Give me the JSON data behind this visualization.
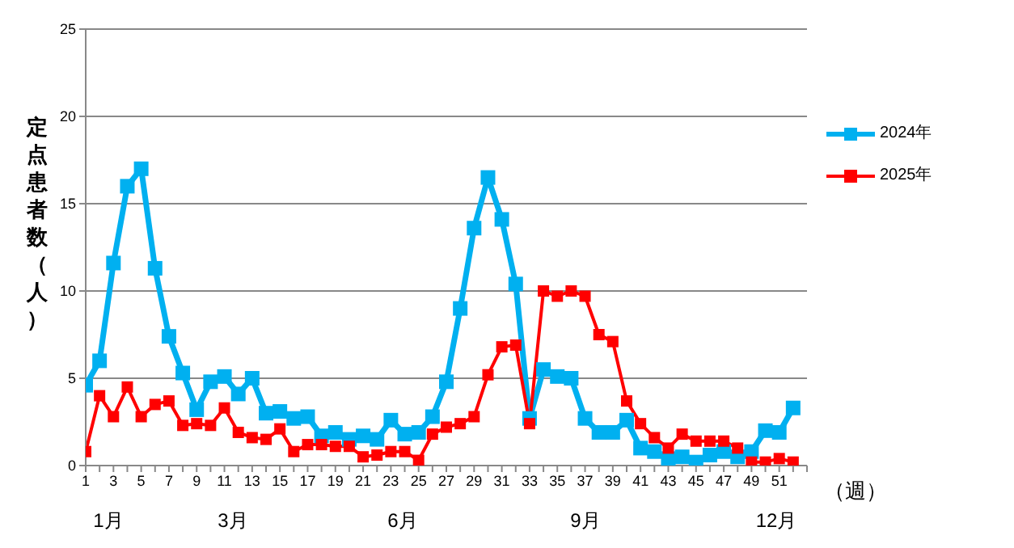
{
  "chart_data": {
    "type": "line",
    "ylabel": "定点患者数（人）",
    "xlabel": "（週）",
    "x": [
      1,
      2,
      3,
      4,
      5,
      6,
      7,
      8,
      9,
      10,
      11,
      12,
      13,
      14,
      15,
      16,
      17,
      18,
      19,
      20,
      21,
      22,
      23,
      24,
      25,
      26,
      27,
      28,
      29,
      30,
      31,
      32,
      33,
      34,
      35,
      36,
      37,
      38,
      39,
      40,
      41,
      42,
      43,
      44,
      45,
      46,
      47,
      48,
      49,
      50,
      51,
      52
    ],
    "series": [
      {
        "name": "2024年",
        "color": "#00b0f0",
        "values": [
          4.6,
          6.0,
          11.6,
          16.0,
          17.0,
          11.3,
          7.4,
          5.3,
          3.2,
          4.8,
          5.1,
          4.1,
          5.0,
          3.0,
          3.1,
          2.7,
          2.8,
          1.7,
          1.9,
          1.5,
          1.7,
          1.5,
          2.6,
          1.8,
          1.9,
          2.8,
          4.8,
          9.0,
          13.6,
          16.5,
          14.1,
          10.4,
          2.7,
          5.5,
          5.1,
          5.0,
          2.7,
          1.9,
          1.9,
          2.6,
          1.0,
          0.8,
          0.4,
          0.5,
          0.2,
          0.6,
          0.8,
          0.5,
          0.8,
          2.0,
          1.9,
          3.3
        ]
      },
      {
        "name": "2025年",
        "color": "#ff0000",
        "values": [
          0.8,
          4.0,
          2.8,
          4.5,
          2.8,
          3.5,
          3.7,
          2.3,
          2.4,
          2.3,
          3.3,
          1.9,
          1.6,
          1.5,
          2.1,
          0.8,
          1.2,
          1.2,
          1.1,
          1.1,
          0.5,
          0.6,
          0.8,
          0.8,
          0.3,
          1.8,
          2.2,
          2.4,
          2.8,
          5.2,
          6.8,
          6.9,
          2.4,
          10.0,
          9.7,
          10.0,
          9.7,
          7.5,
          7.1,
          3.7,
          2.4,
          1.6,
          1.0,
          1.8,
          1.4,
          1.4,
          1.4,
          1.0,
          0.2,
          0.2,
          0.4,
          0.2
        ]
      }
    ],
    "xlim": [
      1,
      53
    ],
    "xticks": [
      1,
      {
        "value": 2,
        "label": null
      },
      3,
      {
        "value": 4,
        "label": null
      },
      5,
      {
        "value": 6,
        "label": null
      },
      7,
      {
        "value": 8,
        "label": null
      },
      9,
      {
        "value": 10,
        "label": null
      },
      11,
      {
        "value": 12,
        "label": null
      },
      13,
      {
        "value": 14,
        "label": null
      },
      15,
      {
        "value": 16,
        "label": null
      },
      17,
      {
        "value": 18,
        "label": null
      },
      19,
      {
        "value": 20,
        "label": null
      },
      21,
      {
        "value": 22,
        "label": null
      },
      23,
      {
        "value": 24,
        "label": null
      },
      25,
      {
        "value": 26,
        "label": null
      },
      27,
      {
        "value": 28,
        "label": null
      },
      29,
      {
        "value": 30,
        "label": null
      },
      31,
      {
        "value": 32,
        "label": null
      },
      33,
      {
        "value": 34,
        "label": null
      },
      35,
      {
        "value": 36,
        "label": null
      },
      37,
      {
        "value": 38,
        "label": null
      },
      39,
      {
        "value": 40,
        "label": null
      },
      41,
      {
        "value": 42,
        "label": null
      },
      43,
      {
        "value": 44,
        "label": null
      },
      45,
      {
        "value": 46,
        "label": null
      },
      47,
      {
        "value": 48,
        "label": null
      },
      49,
      {
        "value": 50,
        "label": null
      },
      51,
      {
        "value": 52,
        "label": null
      },
      {
        "value": 53,
        "label": null
      }
    ],
    "ylim": [
      0,
      25
    ],
    "yticks": [
      0,
      5,
      10,
      15,
      20,
      25
    ],
    "annotations": [
      "1月",
      "3月",
      "6月",
      "9月",
      "12月"
    ],
    "grid": "y",
    "legend": "right",
    "marker": "square",
    "line_style": "solid"
  }
}
